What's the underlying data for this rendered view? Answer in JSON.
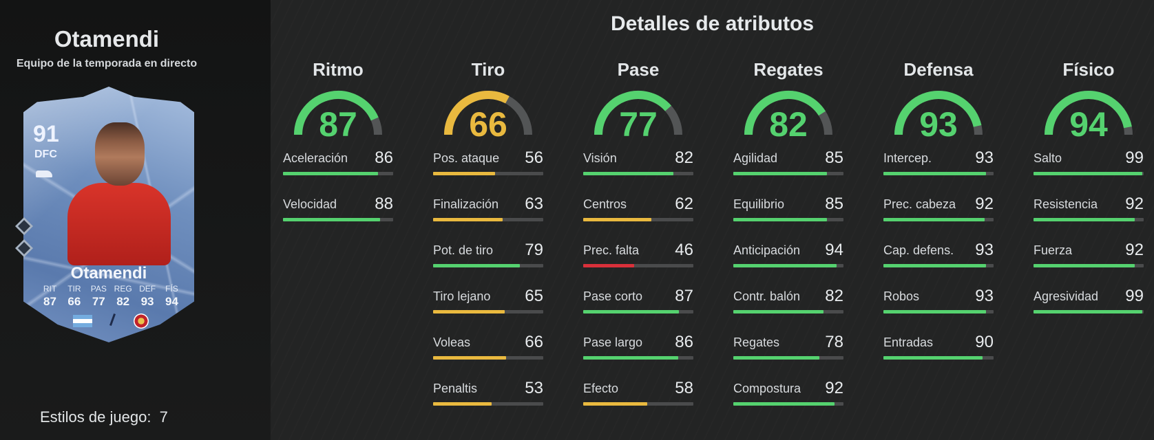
{
  "colors": {
    "green": "#55d26f",
    "yellow": "#e9b93f",
    "red": "#d9303a",
    "track": "#4a4b4c"
  },
  "player": {
    "name": "Otamendi",
    "subtitle": "Equipo de la temporada en directo",
    "styles_label": "Estilos de juego:",
    "styles_count": "7"
  },
  "card": {
    "ovr": "91",
    "pos": "DFC",
    "name": "Otamendi",
    "stats": [
      {
        "label": "RIT",
        "value": "87"
      },
      {
        "label": "TIR",
        "value": "66"
      },
      {
        "label": "PAS",
        "value": "77"
      },
      {
        "label": "REG",
        "value": "82"
      },
      {
        "label": "DEF",
        "value": "93"
      },
      {
        "label": "FÍS",
        "value": "94"
      }
    ]
  },
  "page_title": "Detalles de atributos",
  "categories": [
    {
      "title": "Ritmo",
      "value": 87,
      "color": "green",
      "attrs": [
        {
          "name": "Aceleración",
          "value": 86,
          "color": "green"
        },
        {
          "name": "Velocidad",
          "value": 88,
          "color": "green"
        }
      ]
    },
    {
      "title": "Tiro",
      "value": 66,
      "color": "yellow",
      "attrs": [
        {
          "name": "Pos. ataque",
          "value": 56,
          "color": "yellow"
        },
        {
          "name": "Finalización",
          "value": 63,
          "color": "yellow"
        },
        {
          "name": "Pot. de tiro",
          "value": 79,
          "color": "green"
        },
        {
          "name": "Tiro lejano",
          "value": 65,
          "color": "yellow"
        },
        {
          "name": "Voleas",
          "value": 66,
          "color": "yellow"
        },
        {
          "name": "Penaltis",
          "value": 53,
          "color": "yellow"
        }
      ]
    },
    {
      "title": "Pase",
      "value": 77,
      "color": "green",
      "attrs": [
        {
          "name": "Visión",
          "value": 82,
          "color": "green"
        },
        {
          "name": "Centros",
          "value": 62,
          "color": "yellow"
        },
        {
          "name": "Prec. falta",
          "value": 46,
          "color": "red"
        },
        {
          "name": "Pase corto",
          "value": 87,
          "color": "green"
        },
        {
          "name": "Pase largo",
          "value": 86,
          "color": "green"
        },
        {
          "name": "Efecto",
          "value": 58,
          "color": "yellow"
        }
      ]
    },
    {
      "title": "Regates",
      "value": 82,
      "color": "green",
      "attrs": [
        {
          "name": "Agilidad",
          "value": 85,
          "color": "green"
        },
        {
          "name": "Equilibrio",
          "value": 85,
          "color": "green"
        },
        {
          "name": "Anticipación",
          "value": 94,
          "color": "green"
        },
        {
          "name": "Contr. balón",
          "value": 82,
          "color": "green"
        },
        {
          "name": "Regates",
          "value": 78,
          "color": "green"
        },
        {
          "name": "Compostura",
          "value": 92,
          "color": "green"
        }
      ]
    },
    {
      "title": "Defensa",
      "value": 93,
      "color": "green",
      "attrs": [
        {
          "name": "Intercep.",
          "value": 93,
          "color": "green"
        },
        {
          "name": "Prec. cabeza",
          "value": 92,
          "color": "green"
        },
        {
          "name": "Cap. defens.",
          "value": 93,
          "color": "green"
        },
        {
          "name": "Robos",
          "value": 93,
          "color": "green"
        },
        {
          "name": "Entradas",
          "value": 90,
          "color": "green"
        }
      ]
    },
    {
      "title": "Físico",
      "value": 94,
      "color": "green",
      "attrs": [
        {
          "name": "Salto",
          "value": 99,
          "color": "green"
        },
        {
          "name": "Resistencia",
          "value": 92,
          "color": "green"
        },
        {
          "name": "Fuerza",
          "value": 92,
          "color": "green"
        },
        {
          "name": "Agresividad",
          "value": 99,
          "color": "green"
        }
      ]
    }
  ]
}
